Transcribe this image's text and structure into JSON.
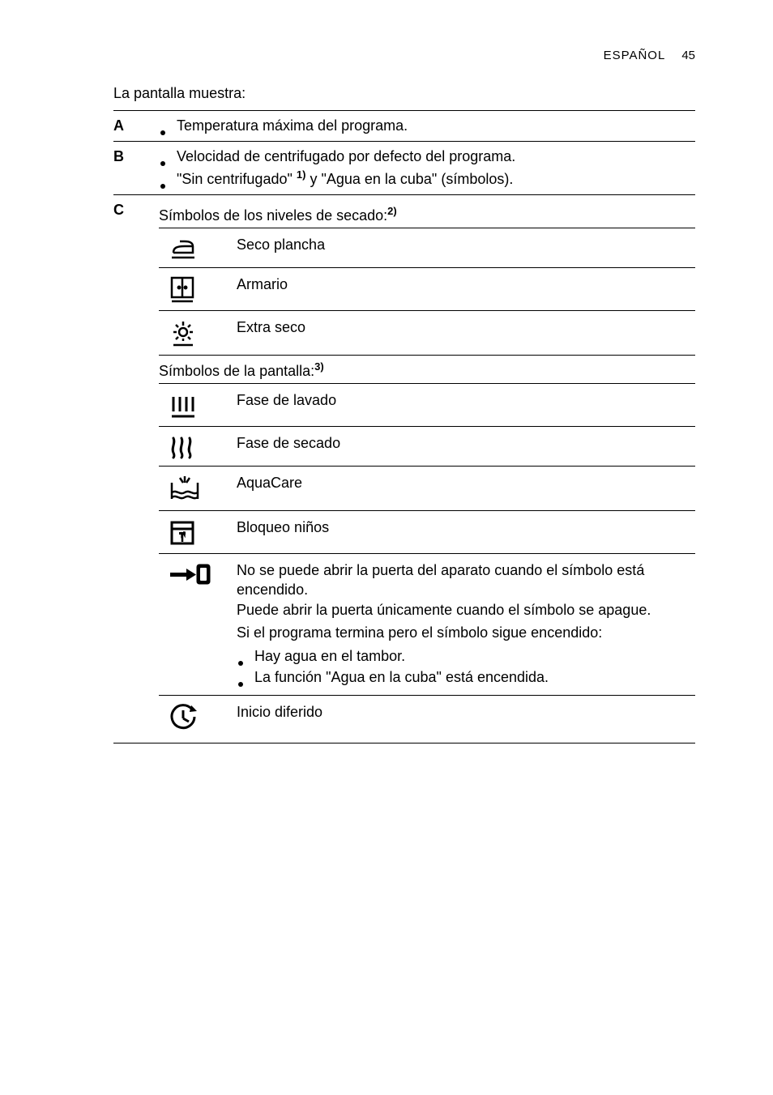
{
  "header": {
    "lang": "ESPAÑOL",
    "page": "45"
  },
  "title": "La pantalla muestra:",
  "sections": {
    "A": {
      "bullets": [
        {
          "text": "Temperatura máxima del programa."
        }
      ]
    },
    "B": {
      "bullets": [
        {
          "text": "Velocidad de centrifugado por defecto del programa."
        },
        {
          "pre": "\"Sin centrifugado\" ",
          "sup": "1)",
          "post": " y \"Agua en la cuba\" (símbolos)."
        }
      ]
    },
    "C": {
      "dry_header_pre": "Símbolos de los niveles de secado:",
      "dry_header_sup": "2)",
      "dry_rows": [
        {
          "icon": "iron",
          "label": "Seco plancha"
        },
        {
          "icon": "cupboard",
          "label": "Armario"
        },
        {
          "icon": "sun",
          "label": "Extra seco"
        }
      ],
      "disp_header_pre": "Símbolos de la pantalla:",
      "disp_header_sup": "3)",
      "disp_rows": [
        {
          "icon": "wash",
          "label": "Fase de lavado"
        },
        {
          "icon": "drywaves",
          "label": "Fase de secado"
        },
        {
          "icon": "aquacare",
          "label": "AquaCare"
        },
        {
          "icon": "childlock",
          "label": "Bloqueo niños"
        },
        {
          "icon": "doorlock",
          "para1": "No se puede abrir la puerta del aparato cuando el símbolo está encendido.",
          "para2": "Puede abrir la puerta únicamente cuando el símbolo se apague.",
          "strong": "Si el programa termina pero el símbolo sigue encendido:",
          "b1": "Hay agua en el tambor.",
          "b2": "La función \"Agua en la cuba\" está encendida."
        },
        {
          "icon": "delay",
          "label": "Inicio diferido"
        }
      ]
    }
  },
  "icons_svg": {
    "iron": "<svg width='38' height='30' viewBox='0 0 38 30'><g fill='none' stroke='#000' stroke-width='2.5'><path d='M6 20 L30 20 L30 12 C30 8 26 6 20 6 L14 6'/><path d='M6 20 C6 14 10 12 20 12 L30 12'/><line x1='4' y1='26' x2='32' y2='26'/></g></svg>",
    "cupboard": "<svg width='34' height='34' viewBox='0 0 34 34'><g fill='none' stroke='#000' stroke-width='2.5'><rect x='4' y='2' width='26' height='24'/><line x1='17' y1='2' x2='17' y2='26'/><circle cx='13' cy='14' r='1.2' fill='#000'/><circle cx='21' cy='14' r='1.2' fill='#000'/><line x1='4' y1='31' x2='30' y2='31'/></g></svg>",
    "sun": "<svg width='36' height='36' viewBox='0 0 36 36'><g fill='none' stroke='#000' stroke-width='2.5'><circle cx='18' cy='16' r='5'/><line x1='18' y1='3' x2='18' y2='8'/><line x1='18' y1='24' x2='18' y2='27'/><line x1='6' y1='16' x2='10' y2='16'/><line x1='26' y1='16' x2='30' y2='16'/><line x1='9' y1='7' x2='12' y2='10'/><line x1='24' y1='10' x2='27' y2='7'/><line x1='9' y1='25' x2='12' y2='22'/><line x1='24' y1='22' x2='27' y2='25'/><line x1='6' y1='32' x2='30' y2='32'/></g></svg>",
    "wash": "<svg width='36' height='34' viewBox='0 0 36 34'><g fill='none' stroke='#000' stroke-width='3'><line x1='6' y1='6' x2='6' y2='24'/><line x1='14' y1='6' x2='14' y2='24'/><line x1='22' y1='6' x2='22' y2='24'/><line x1='30' y1='6' x2='30' y2='24'/><line x1='4' y1='30' x2='32' y2='30'/></g></svg>",
    "drywaves": "<svg width='34' height='30' viewBox='0 0 34 30'><g fill='none' stroke='#000' stroke-width='3' stroke-linecap='round'><path d='M6 4 C9 10 3 16 6 22 C8 26 6 28 6 28'/><path d='M16 4 C19 10 13 16 16 22 C18 26 16 28 16 28'/><path d='M26 4 C29 10 23 16 26 22 C28 26 26 28 26 28'/></g></svg>",
    "aquacare": "<svg width='40' height='36' viewBox='0 0 40 36'><g fill='none' stroke='#000' stroke-width='2.5'><line x1='4' y1='10' x2='4' y2='30'/><line x1='36' y1='10' x2='36' y2='30'/><path d='M4 22 C10 18 14 26 20 22 C26 18 30 26 36 22'/><path d='M4 28 C10 24 14 32 20 28 C26 24 30 32 36 28'/><line x1='14' y1='4' x2='18' y2='10'/><line x1='20' y1='2' x2='20' y2='10'/><line x1='26' y1='4' x2='22' y2='10'/></g></svg>",
    "childlock": "<svg width='34' height='34' viewBox='0 0 34 34'><g fill='none' stroke='#000' stroke-width='3'><rect x='4' y='4' width='26' height='26'/><line x1='4' y1='12' x2='30' y2='12'/></g><g fill='#000'><path d='M14 18 L14 27 L17 27 L17 22 L20 27 L20 18 L17 18 L17 23 L14 18 Z' transform='scale(0.9) translate(3 -1)'/><rect x='13' y='16' width='8' height='3'/><path d='M17 17 L17 28' stroke='#000' stroke-width='2.5'/></g></svg>",
    "doorlock": "<svg width='54' height='30' viewBox='0 0 54 30'><g fill='#000'><rect x='2' y='13' width='24' height='5'/><polygon points='22,8 34,15.5 22,23'/></g><g fill='none' stroke='#000' stroke-width='3'><rect x='36' y='4' width='14' height='22' rx='2'/></g><g fill='#000'><rect x='36' y='4' width='14' height='22' rx='2'/></g><rect x='39' y='7' width='8' height='16' fill='#fff' rx='1'/></svg>",
    "delay": "<svg width='36' height='34' viewBox='0 0 36 34'><g fill='none' stroke='#000' stroke-width='3'><path d='M29 7 A14 14 0 1 0 32 16'/><line x1='18' y1='8' x2='18' y2='18'/><line x1='18' y1='18' x2='25' y2='22'/><polyline points='28,2 33,7 26,10' fill='#000' stroke='none'/></g><polygon points='28,2 35,9 26,10' fill='#000'/></svg>"
  }
}
